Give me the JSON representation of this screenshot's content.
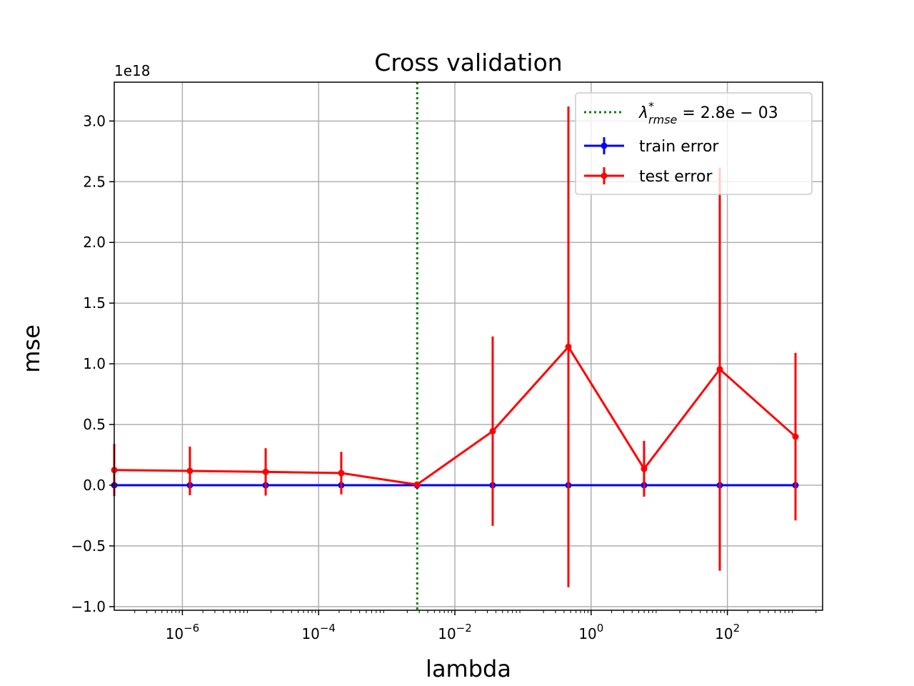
{
  "chart_data": {
    "type": "line",
    "title": "Cross validation",
    "xlabel": "lambda",
    "ylabel": "mse",
    "x_scale": "log",
    "xlim": [
      1e-07,
      2500
    ],
    "ylim": [
      -1.03,
      3.32
    ],
    "y_offset_label": "1e18",
    "grid": true,
    "legend_position": "top-right",
    "x_ticks": [
      {
        "value": 1e-06,
        "base": "10",
        "exp": "−6"
      },
      {
        "value": 0.0001,
        "base": "10",
        "exp": "−4"
      },
      {
        "value": 0.01,
        "base": "10",
        "exp": "−2"
      },
      {
        "value": 1,
        "base": "10",
        "exp": "0"
      },
      {
        "value": 100,
        "base": "10",
        "exp": "2"
      }
    ],
    "y_ticks": [
      {
        "value": -1.0,
        "label": "−1.0"
      },
      {
        "value": -0.5,
        "label": "−0.5"
      },
      {
        "value": 0.0,
        "label": "0.0"
      },
      {
        "value": 0.5,
        "label": "0.5"
      },
      {
        "value": 1.0,
        "label": "1.0"
      },
      {
        "value": 1.5,
        "label": "1.5"
      },
      {
        "value": 2.0,
        "label": "2.0"
      },
      {
        "value": 2.5,
        "label": "2.5"
      },
      {
        "value": 3.0,
        "label": "3.0"
      }
    ],
    "x": [
      1e-07,
      1.29e-06,
      1.67e-05,
      0.000215,
      0.00278,
      0.0359,
      0.464,
      5.99,
      77.4,
      1000
    ],
    "series": [
      {
        "name": "train error",
        "color": "#0000ff",
        "values": [
          0,
          0,
          0,
          0,
          0,
          0,
          0,
          0,
          0,
          0
        ],
        "errors": [
          0,
          0,
          0,
          0,
          0,
          0,
          0,
          0,
          0,
          0
        ]
      },
      {
        "name": "test error",
        "color": "#ff0000",
        "values": [
          0.125,
          0.118,
          0.11,
          0.1,
          0.005,
          0.445,
          1.14,
          0.135,
          0.955,
          0.4
        ],
        "errors": [
          0.215,
          0.2,
          0.195,
          0.175,
          0.005,
          0.78,
          1.98,
          0.23,
          1.66,
          0.69
        ]
      }
    ],
    "vline": {
      "x": 0.0028,
      "color": "#008000",
      "style": "dotted",
      "label_lambda": "λ",
      "label_sup": "*",
      "label_sub": "rmse",
      "label_rest": " = 2.8e − 03"
    }
  }
}
